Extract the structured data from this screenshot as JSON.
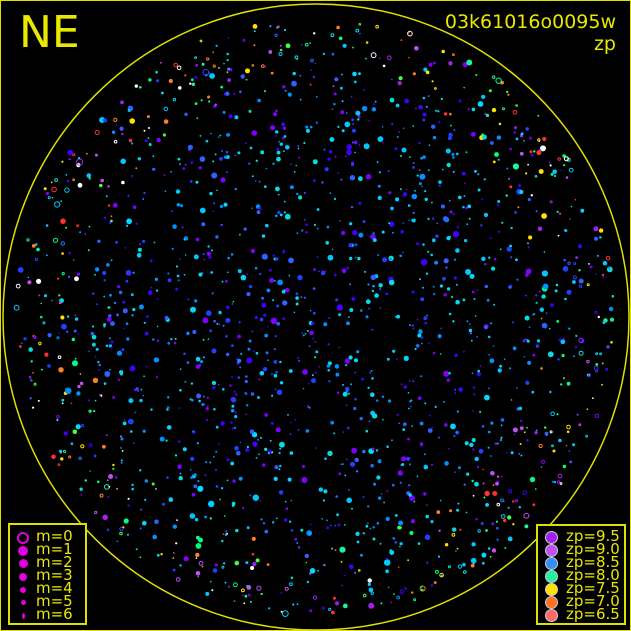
{
  "header": {
    "direction": "NE",
    "frame_id": "03k61016o0095w",
    "quantity": "zp"
  },
  "colors": {
    "frame": "#e0e000",
    "background": "#000000",
    "horizon_circle": "#e0e000"
  },
  "chart_data": {
    "type": "scatter",
    "title": "03k61016o0095w",
    "subtitle": "zp",
    "grid": false,
    "legend_placement": [
      "bottom-left",
      "bottom-right"
    ],
    "size_legend": {
      "symbol_color": "#e000e0",
      "entries": [
        {
          "label": "m=0",
          "style": "ring"
        },
        {
          "label": "m=1"
        },
        {
          "label": "m=2"
        },
        {
          "label": "m=3"
        },
        {
          "label": "m=4"
        },
        {
          "label": "m=5"
        },
        {
          "label": "m=6"
        }
      ]
    },
    "color_legend": {
      "entries": [
        {
          "label": "zp=9.5",
          "color": "#a020f0"
        },
        {
          "label": "zp=9.0",
          "color": "#c050f0"
        },
        {
          "label": "zp=8.5",
          "color": "#3090ff"
        },
        {
          "label": "zp=8.0",
          "color": "#20f0a0"
        },
        {
          "label": "zp=7.5",
          "color": "#ffe000"
        },
        {
          "label": "zp=7.0",
          "color": "#ff7020"
        },
        {
          "label": "zp=6.5",
          "color": "#ff6868"
        }
      ]
    }
  }
}
